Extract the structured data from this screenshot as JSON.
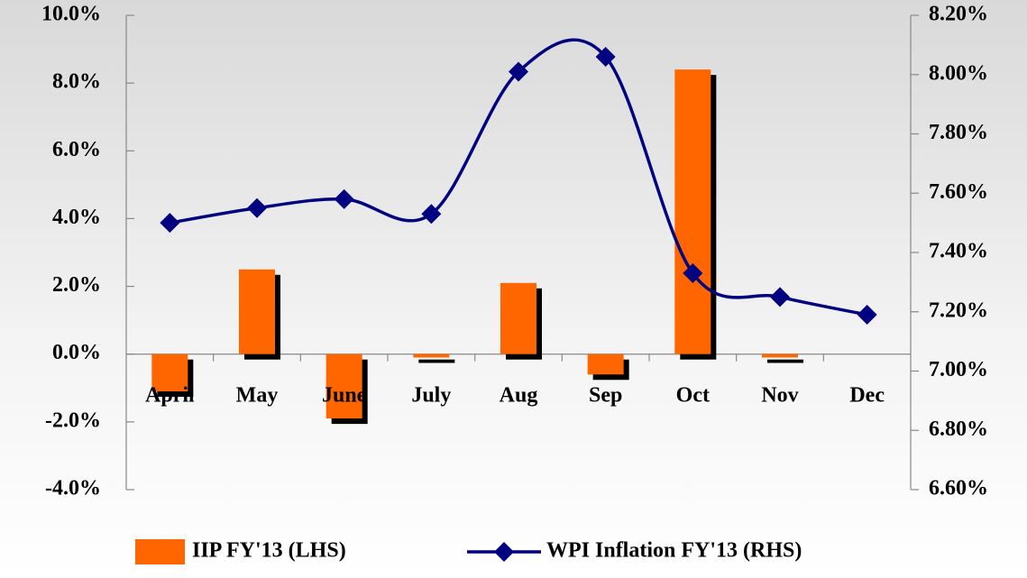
{
  "chart_data": {
    "type": "bar_line",
    "categories": [
      "April",
      "May",
      "June",
      "July",
      "Aug",
      "Sep",
      "Oct",
      "Nov",
      "Dec"
    ],
    "series": [
      {
        "name": "IIP FY'13 (LHS)",
        "color": "#ff6600",
        "type": "bar",
        "values": [
          -1.1,
          2.5,
          -1.9,
          -0.1,
          2.1,
          -0.6,
          8.4,
          -0.1,
          null
        ]
      },
      {
        "name": "WPI Inflation FY'13 (RHS)",
        "color": "#000080",
        "type": "line",
        "axis": "y2",
        "values": [
          7.5,
          7.55,
          7.58,
          7.53,
          8.01,
          8.06,
          7.33,
          7.25,
          7.19
        ]
      }
    ],
    "ylim": [
      -4,
      10
    ],
    "yticks": [
      {
        "value": -4,
        "label": "-4.0%"
      },
      {
        "value": -2,
        "label": "-2.0%"
      },
      {
        "value": 0,
        "label": "0.0%"
      },
      {
        "value": 2,
        "label": "2.0%"
      },
      {
        "value": 4,
        "label": "4.0%"
      },
      {
        "value": 6,
        "label": "6.0%"
      },
      {
        "value": 8,
        "label": "8.0%"
      },
      {
        "value": 10,
        "label": "10.0%"
      }
    ],
    "y2lim": [
      6.6,
      8.2
    ],
    "y2ticks": [
      {
        "value": 6.6,
        "label": "6.60%"
      },
      {
        "value": 6.8,
        "label": "6.80%"
      },
      {
        "value": 7.0,
        "label": "7.00%"
      },
      {
        "value": 7.2,
        "label": "7.20%"
      },
      {
        "value": 7.4,
        "label": "7.40%"
      },
      {
        "value": 7.6,
        "label": "7.60%"
      },
      {
        "value": 7.8,
        "label": "7.80%"
      },
      {
        "value": 8.0,
        "label": "8.00%"
      },
      {
        "value": 8.2,
        "label": "8.20%"
      }
    ]
  }
}
